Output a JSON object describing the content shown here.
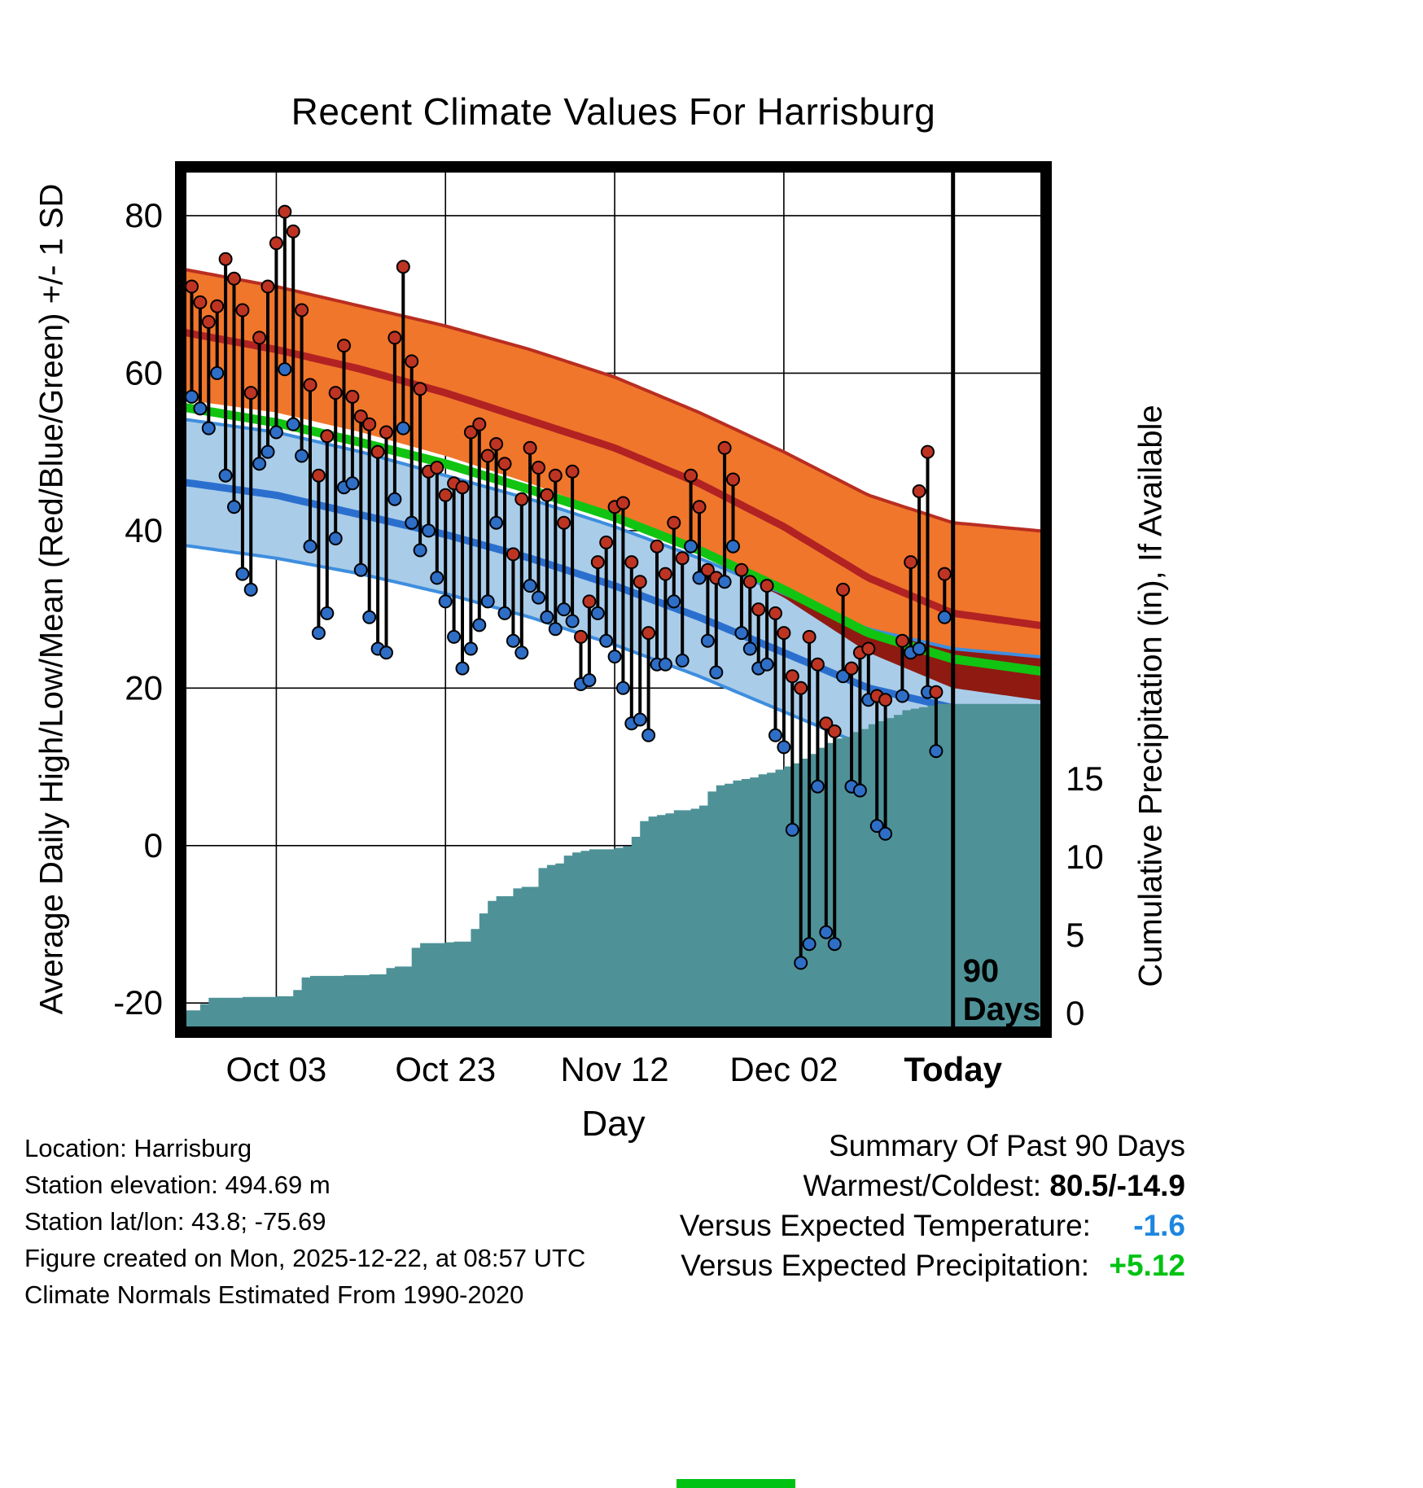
{
  "title": "Recent Climate Values For Harrisburg",
  "axes": {
    "left": {
      "label": "Average Daily High/Low/Mean (Red/Blue/Green) +/- 1 SD",
      "ticks": [
        80,
        60,
        40,
        20,
        0,
        -20
      ]
    },
    "right": {
      "label": "Cumulative Precipitation (in), If Available",
      "ticks": [
        15,
        10,
        5,
        0
      ]
    },
    "x": {
      "label": "Day",
      "ticks": [
        {
          "day": 10,
          "label": "Oct 03",
          "bold": false
        },
        {
          "day": 30,
          "label": "Oct 23",
          "bold": false
        },
        {
          "day": 50,
          "label": "Nov 12",
          "bold": false
        },
        {
          "day": 70,
          "label": "Dec 02",
          "bold": false
        },
        {
          "day": 90,
          "label": "Today",
          "bold": true
        }
      ]
    }
  },
  "annotation_90days": {
    "day": 90,
    "line1": "90",
    "line2": "Days"
  },
  "colors": {
    "high_band": "#F0762B",
    "high_band_edge": "#B92E21",
    "high_line": "#B22222",
    "overlap_band": "#8E1A12",
    "low_band": "#A9CCE9",
    "low_band_edge": "#3E8EDE",
    "low_line": "#2B6FCE",
    "mean_line": "#12C412",
    "precip_fill": "#4E9298",
    "whisker": "#000000",
    "high_dot": "#BE3423",
    "low_dot": "#2E6EC6",
    "grid": "#000000",
    "temp_anomaly": "#1E86E0",
    "precip_anomaly": "#00C213"
  },
  "chart_data": {
    "type": "line",
    "description": "Daily high/low temperature whiskers vs climate normal bands (+/- 1 SD) and cumulative precipitation staircase area; x axis is day index 0..90 where day 10 = Oct 03 and day 90 = Today (2025-12-22).",
    "xlabel": "Day",
    "ylabel_left": "Average Daily High/Low/Mean (Red/Blue/Green) +/- 1 SD",
    "ylabel_right": "Cumulative Precipitation (in), If Available",
    "temp_axis_range": [
      -23.7,
      86.2
    ],
    "precip_axis_ticks": [
      0,
      5,
      10,
      15
    ],
    "band_control_days": [
      0,
      10,
      20,
      30,
      40,
      50,
      60,
      70,
      80,
      90,
      100
    ],
    "normals": {
      "high_plus_sd": [
        73,
        71,
        68.5,
        66,
        63,
        59.5,
        55,
        50,
        44.5,
        41,
        40
      ],
      "high_mean": [
        65,
        63,
        60.5,
        57.5,
        54,
        50.5,
        46,
        40.5,
        34,
        29.5,
        28
      ],
      "high_minus_sd": [
        56.5,
        55,
        52.5,
        49.5,
        46,
        42,
        37,
        31.5,
        24.5,
        20,
        18.5
      ],
      "low_plus_sd": [
        54,
        52.5,
        50,
        47,
        44,
        40.5,
        36.5,
        32,
        27.5,
        25,
        24
      ],
      "low_mean": [
        46,
        44.5,
        42,
        39.5,
        36.5,
        33,
        29,
        24.5,
        20,
        17.5,
        16.5
      ],
      "low_minus_sd": [
        38,
        36.5,
        34.5,
        32,
        29,
        25.5,
        21.5,
        17,
        12.5,
        10,
        9
      ],
      "mean": [
        55.5,
        53.7,
        51.2,
        48.5,
        45.2,
        41.7,
        37.5,
        32.5,
        27,
        23.7,
        22.2
      ]
    },
    "daily": {
      "high": [
        71,
        69,
        66.5,
        68.5,
        74.5,
        72,
        68,
        57.5,
        64.5,
        71,
        76.5,
        80.5,
        78,
        68,
        58.5,
        47,
        52,
        57.5,
        63.5,
        57,
        54.5,
        53.5,
        50,
        52.5,
        64.5,
        73.5,
        61.5,
        58,
        47.5,
        48,
        44.5,
        46,
        45.5,
        52.5,
        53.5,
        49.5,
        51,
        48.5,
        37,
        44,
        50.5,
        48,
        44.5,
        47,
        41,
        47.5,
        26.5,
        31,
        36,
        38.5,
        43,
        43.5,
        36,
        33.5,
        27,
        38,
        34.5,
        41,
        36.5,
        47,
        43,
        35,
        34,
        50.5,
        46.5,
        35,
        33.5,
        30,
        33,
        29.5,
        27,
        21.5,
        20,
        26.5,
        23,
        15.5,
        14.5,
        32.5,
        22.5,
        24.5,
        25,
        19,
        18.5,
        null,
        26,
        36,
        45,
        50,
        19.5,
        34.5
      ],
      "low": [
        57,
        55.5,
        53,
        60,
        47,
        43,
        34.5,
        32.5,
        48.5,
        50,
        52.5,
        60.5,
        53.5,
        49.5,
        38,
        27,
        29.5,
        39,
        45.5,
        46,
        35,
        29,
        25,
        24.5,
        44,
        53,
        41,
        37.5,
        40,
        34,
        31,
        26.5,
        22.5,
        25,
        28,
        31,
        41,
        29.5,
        26,
        24.5,
        33,
        31.5,
        29,
        27.5,
        30,
        28.5,
        20.5,
        21,
        29.5,
        26,
        24,
        20,
        15.5,
        16,
        14,
        23,
        23,
        31,
        23.5,
        38,
        34,
        26,
        22,
        33.5,
        38,
        27,
        25,
        22.5,
        23,
        14,
        12.5,
        2,
        -14.9,
        -12.5,
        7.5,
        -11,
        -12.5,
        21.5,
        7.5,
        7,
        18.5,
        2.5,
        1.5,
        null,
        19,
        24.5,
        25,
        19.5,
        12,
        29
      ]
    },
    "cumulative_precip_in": [
      0.2,
      0.6,
      1.0,
      1.0,
      1.0,
      1.0,
      1.05,
      1.05,
      1.05,
      1.05,
      1.1,
      1.1,
      1.5,
      2.3,
      2.4,
      2.4,
      2.4,
      2.4,
      2.45,
      2.45,
      2.45,
      2.5,
      2.5,
      2.9,
      3.0,
      3.0,
      4.2,
      4.5,
      4.5,
      4.5,
      4.55,
      4.6,
      4.6,
      5.4,
      6.4,
      7.2,
      7.5,
      7.5,
      8.0,
      8.1,
      8.1,
      9.3,
      9.5,
      9.6,
      10.1,
      10.3,
      10.4,
      10.5,
      10.5,
      10.5,
      10.6,
      10.7,
      11.3,
      12.3,
      12.6,
      12.7,
      12.8,
      13.0,
      13.0,
      13.1,
      13.3,
      14.2,
      14.6,
      14.7,
      14.9,
      15.0,
      15.1,
      15.3,
      15.4,
      15.6,
      15.8,
      16.0,
      16.3,
      16.6,
      17.0,
      17.3,
      17.6,
      17.7,
      18.0,
      18.2,
      18.5,
      18.7,
      18.9,
      19.1,
      19.4,
      19.5,
      19.6,
      19.7,
      19.8,
      19.8,
      19.8
    ]
  },
  "footer": {
    "lines": [
      "Location: Harrisburg",
      "Station elevation: 494.69 m",
      "Station lat/lon: 43.8; -75.69",
      "Figure created on Mon, 2025-12-22, at 08:57 UTC",
      "Climate Normals Estimated From 1990-2020"
    ]
  },
  "summary": {
    "title": "Summary Of Past 90 Days",
    "warmest_coldest_label": "Warmest/Coldest:",
    "warmest_coldest_value": "80.5/-14.9",
    "temp_label": "Versus Expected Temperature:",
    "temp_value": "-1.6",
    "precip_label": "Versus Expected Precipitation:",
    "precip_value": "+5.12"
  }
}
